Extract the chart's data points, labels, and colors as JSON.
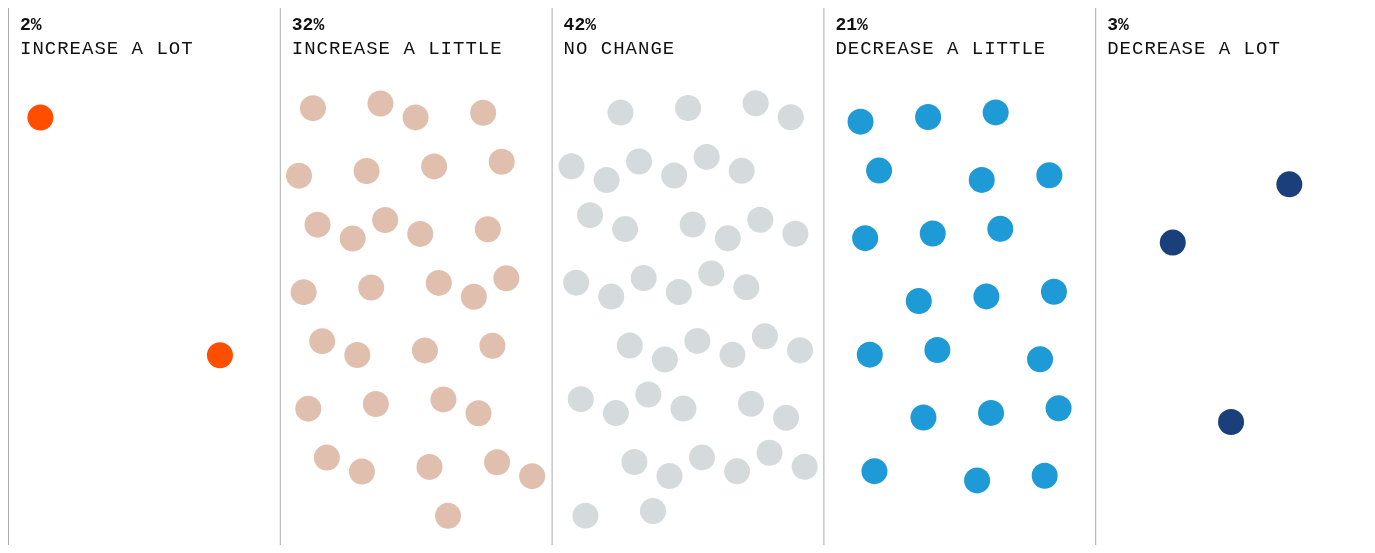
{
  "chart_data": {
    "type": "other",
    "categories": [
      "INCREASE A LOT",
      "INCREASE A LITTLE",
      "NO CHANGE",
      "DECREASE A LITTLE",
      "DECREASE A LOT"
    ],
    "values": [
      2,
      32,
      42,
      21,
      3
    ],
    "value_labels": [
      "2%",
      "32%",
      "42%",
      "21%",
      "3%"
    ],
    "colors": [
      "#ff4e00",
      "#e0bfae",
      "#d5dadd",
      "#1e9ad6",
      "#1a3f7a"
    ]
  }
}
